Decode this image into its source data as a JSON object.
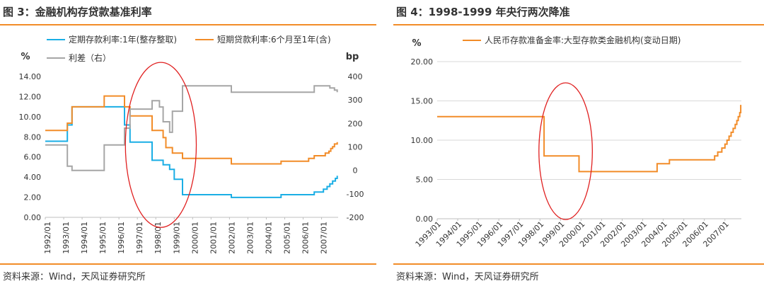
{
  "left": {
    "title": "图 3：金融机构存贷款基准利率",
    "source": "资料来源：Wind，天风证券研究所"
  },
  "right": {
    "title": "图 4：1998-1999 年央行两次降准",
    "source": "资料来源：Wind，天风证券研究所"
  },
  "colors": {
    "blue": "#1aaee5",
    "orange": "#f28c28",
    "gray": "#a6a6a6",
    "red": "#e02020",
    "rule": "#f28c28"
  },
  "chart_data": [
    {
      "type": "line",
      "ylabel": "%",
      "y2label": "bp",
      "ylim": [
        0,
        14
      ],
      "y2lim": [
        -200,
        400
      ],
      "yticks": [
        "0.00",
        "2.00",
        "4.00",
        "6.00",
        "8.00",
        "10.00",
        "12.00",
        "14.00"
      ],
      "y2ticks": [
        "-200",
        "-100",
        "0",
        "100",
        "200",
        "300",
        "400"
      ],
      "xlim": [
        1992.0,
        2007.9
      ],
      "xticks": [
        "1992/01",
        "1993/01",
        "1994/01",
        "1995/01",
        "1996/01",
        "1997/01",
        "1998/01",
        "1999/01",
        "2000/01",
        "2001/01",
        "2002/01",
        "2003/01",
        "2004/01",
        "2005/01",
        "2006/01",
        "2007/01"
      ],
      "legend_position": "top",
      "series": [
        {
          "name": "定期存款利率:1年(整存整取)",
          "axis": "left",
          "color": "blue",
          "points": [
            [
              1992.0,
              7.56
            ],
            [
              1993.2,
              7.56
            ],
            [
              1993.2,
              9.18
            ],
            [
              1993.45,
              9.18
            ],
            [
              1993.45,
              10.98
            ],
            [
              1996.3,
              10.98
            ],
            [
              1996.3,
              9.18
            ],
            [
              1996.6,
              9.18
            ],
            [
              1996.6,
              7.47
            ],
            [
              1997.8,
              7.47
            ],
            [
              1997.8,
              5.67
            ],
            [
              1998.4,
              5.67
            ],
            [
              1998.4,
              5.22
            ],
            [
              1998.75,
              5.22
            ],
            [
              1998.75,
              4.77
            ],
            [
              1999.0,
              4.77
            ],
            [
              1999.0,
              3.78
            ],
            [
              1999.45,
              3.78
            ],
            [
              1999.45,
              2.25
            ],
            [
              2002.1,
              2.25
            ],
            [
              2002.1,
              1.98
            ],
            [
              2004.8,
              1.98
            ],
            [
              2004.8,
              2.25
            ],
            [
              2006.6,
              2.25
            ],
            [
              2006.6,
              2.52
            ],
            [
              2007.1,
              2.52
            ],
            [
              2007.1,
              2.79
            ],
            [
              2007.3,
              2.79
            ],
            [
              2007.3,
              3.06
            ],
            [
              2007.45,
              3.06
            ],
            [
              2007.45,
              3.33
            ],
            [
              2007.6,
              3.33
            ],
            [
              2007.6,
              3.6
            ],
            [
              2007.75,
              3.6
            ],
            [
              2007.75,
              3.87
            ],
            [
              2007.85,
              3.87
            ],
            [
              2007.85,
              4.14
            ]
          ]
        },
        {
          "name": "短期贷款利率:6个月至1年(含)",
          "axis": "left",
          "color": "orange",
          "points": [
            [
              1992.0,
              8.64
            ],
            [
              1993.2,
              8.64
            ],
            [
              1993.2,
              9.36
            ],
            [
              1993.45,
              9.36
            ],
            [
              1993.45,
              10.98
            ],
            [
              1995.2,
              10.98
            ],
            [
              1995.2,
              12.06
            ],
            [
              1996.3,
              12.06
            ],
            [
              1996.3,
              10.98
            ],
            [
              1996.6,
              10.98
            ],
            [
              1996.6,
              10.08
            ],
            [
              1997.8,
              10.08
            ],
            [
              1997.8,
              8.64
            ],
            [
              1998.4,
              8.64
            ],
            [
              1998.4,
              7.92
            ],
            [
              1998.55,
              7.92
            ],
            [
              1998.55,
              6.93
            ],
            [
              1998.9,
              6.93
            ],
            [
              1998.9,
              6.39
            ],
            [
              1999.45,
              6.39
            ],
            [
              1999.45,
              5.85
            ],
            [
              2002.1,
              5.85
            ],
            [
              2002.1,
              5.31
            ],
            [
              2004.8,
              5.31
            ],
            [
              2004.8,
              5.58
            ],
            [
              2006.3,
              5.58
            ],
            [
              2006.3,
              5.85
            ],
            [
              2006.6,
              5.85
            ],
            [
              2006.6,
              6.12
            ],
            [
              2007.2,
              6.12
            ],
            [
              2007.2,
              6.39
            ],
            [
              2007.4,
              6.39
            ],
            [
              2007.4,
              6.57
            ],
            [
              2007.5,
              6.57
            ],
            [
              2007.5,
              6.84
            ],
            [
              2007.6,
              6.84
            ],
            [
              2007.6,
              7.02
            ],
            [
              2007.7,
              7.02
            ],
            [
              2007.7,
              7.29
            ],
            [
              2007.85,
              7.29
            ],
            [
              2007.85,
              7.47
            ]
          ]
        },
        {
          "name": "利差（右）",
          "axis": "right",
          "color": "gray",
          "points": [
            [
              1992.0,
              108
            ],
            [
              1993.2,
              108
            ],
            [
              1993.2,
              18
            ],
            [
              1993.45,
              18
            ],
            [
              1993.45,
              0
            ],
            [
              1995.2,
              0
            ],
            [
              1995.2,
              108
            ],
            [
              1996.3,
              108
            ],
            [
              1996.3,
              180
            ],
            [
              1996.6,
              180
            ],
            [
              1996.6,
              261
            ],
            [
              1997.8,
              261
            ],
            [
              1997.8,
              297
            ],
            [
              1998.2,
              297
            ],
            [
              1998.2,
              270
            ],
            [
              1998.4,
              270
            ],
            [
              1998.4,
              207
            ],
            [
              1998.75,
              207
            ],
            [
              1998.75,
              162
            ],
            [
              1998.9,
              162
            ],
            [
              1998.9,
              252
            ],
            [
              1999.45,
              252
            ],
            [
              1999.45,
              360
            ],
            [
              2002.1,
              360
            ],
            [
              2002.1,
              333
            ],
            [
              2006.6,
              333
            ],
            [
              2006.6,
              360
            ],
            [
              2007.45,
              360
            ],
            [
              2007.45,
              351
            ],
            [
              2007.7,
              351
            ],
            [
              2007.7,
              342
            ],
            [
              2007.85,
              342
            ],
            [
              2007.85,
              333
            ]
          ]
        }
      ],
      "annotations": [
        {
          "shape": "ellipse",
          "color": "red",
          "x_from": 1996.35,
          "x_to": 2000.2,
          "y_from": -1.0,
          "y_to": 15.4
        }
      ]
    },
    {
      "type": "line",
      "ylabel": "%",
      "ylim": [
        0,
        20
      ],
      "yticks": [
        "0.00",
        "5.00",
        "10.00",
        "15.00",
        "20.00"
      ],
      "xlim": [
        1993.0,
        2007.8
      ],
      "xticks": [
        "1993/01",
        "1994/01",
        "1995/01",
        "1996/01",
        "1997/01",
        "1998/01",
        "1999/01",
        "2000/01",
        "2001/01",
        "2002/01",
        "2003/01",
        "2004/01",
        "2005/01",
        "2006/01",
        "2007/01"
      ],
      "legend_position": "top",
      "series": [
        {
          "name": "人民币存款准备金率:大型存款类金融机构(变动日期)",
          "axis": "left",
          "color": "orange",
          "points": [
            [
              1993.0,
              13.0
            ],
            [
              1998.2,
              13.0
            ],
            [
              1998.2,
              8.0
            ],
            [
              1999.9,
              8.0
            ],
            [
              1999.9,
              6.0
            ],
            [
              2003.7,
              6.0
            ],
            [
              2003.7,
              7.0
            ],
            [
              2004.3,
              7.0
            ],
            [
              2004.3,
              7.5
            ],
            [
              2006.5,
              7.5
            ],
            [
              2006.5,
              8.0
            ],
            [
              2006.65,
              8.0
            ],
            [
              2006.65,
              8.5
            ],
            [
              2006.85,
              8.5
            ],
            [
              2006.85,
              9.0
            ],
            [
              2007.0,
              9.0
            ],
            [
              2007.0,
              9.5
            ],
            [
              2007.1,
              9.5
            ],
            [
              2007.1,
              10.0
            ],
            [
              2007.2,
              10.0
            ],
            [
              2007.2,
              10.5
            ],
            [
              2007.3,
              10.5
            ],
            [
              2007.3,
              11.0
            ],
            [
              2007.4,
              11.0
            ],
            [
              2007.4,
              11.5
            ],
            [
              2007.5,
              11.5
            ],
            [
              2007.5,
              12.0
            ],
            [
              2007.58,
              12.0
            ],
            [
              2007.58,
              12.5
            ],
            [
              2007.65,
              12.5
            ],
            [
              2007.65,
              13.0
            ],
            [
              2007.72,
              13.0
            ],
            [
              2007.72,
              13.5
            ],
            [
              2007.77,
              13.5
            ],
            [
              2007.77,
              14.5
            ]
          ]
        }
      ],
      "annotations": [
        {
          "shape": "ellipse",
          "color": "red",
          "x_from": 1997.95,
          "x_to": 2000.55,
          "y_from": -0.1,
          "y_to": 17.3
        }
      ]
    }
  ]
}
